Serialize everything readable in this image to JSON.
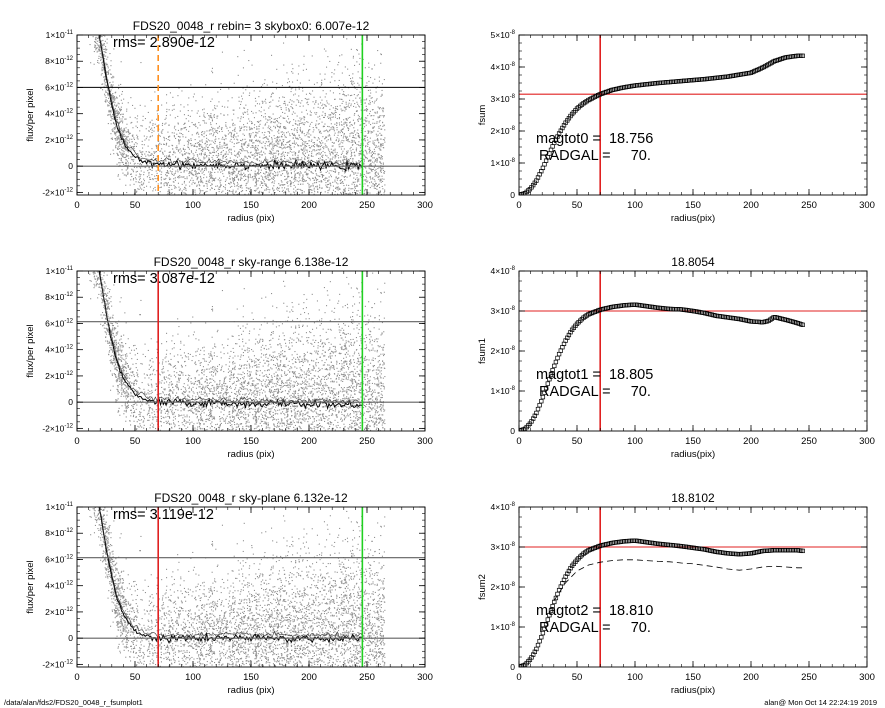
{
  "footer": {
    "path": "/data/alan/fds2/FDS20_0048_r_fsumplot1",
    "stamp": "alan@  Mon Oct 14 22:24:19 2019"
  },
  "colors": {
    "axis": "#000000",
    "scatter": "#909090",
    "profile": "#000000",
    "red": "#e02020",
    "green": "#20d020",
    "orange": "#ff9020",
    "skyline": "#606060"
  },
  "chart_data": [
    {
      "id": "p1",
      "type": "scatter",
      "title": "FDS20_0048_r rebin= 3    skybox0:  6.007e-12",
      "annotation": "rms= 2.890e-12",
      "xlabel": "radius (pix)",
      "ylabel": "flux/per pixel",
      "xlim": [
        0,
        300
      ],
      "ylim": [
        -2.2e-12,
        1e-11
      ],
      "xticks": [
        0,
        50,
        100,
        150,
        200,
        250,
        300
      ],
      "xticklabels": [
        "0",
        "50",
        "100",
        "150",
        "200",
        "250",
        "300"
      ],
      "yticks": [
        -2e-12,
        0,
        2e-12,
        4e-12,
        6e-12,
        8e-12,
        1e-11
      ],
      "yticklabels": [
        [
          "-2×10",
          "-12"
        ],
        [
          "0",
          ""
        ],
        [
          "2×10",
          "-12"
        ],
        [
          "4×10",
          "-12"
        ],
        [
          "6×10",
          "-12"
        ],
        [
          "8×10",
          "-12"
        ],
        [
          "1×10",
          "-11"
        ]
      ],
      "hlines": [
        {
          "y": 6.007e-12,
          "color": "#000000"
        },
        {
          "y": 0,
          "color": "#606060"
        }
      ],
      "vlines": [
        {
          "x": 70,
          "color": "#ff9020",
          "dash": true
        },
        {
          "x": 246,
          "color": "#20d020"
        }
      ],
      "profile": {
        "x": [
          18,
          22,
          26,
          30,
          34,
          38,
          42,
          46,
          50,
          55,
          60,
          70,
          80,
          100,
          125,
          150,
          175,
          200,
          225,
          245
        ],
        "y": [
          1.05e-11,
          8.5e-12,
          6.4e-12,
          4.6e-12,
          3.2e-12,
          2.2e-12,
          1.5e-12,
          1e-12,
          7e-13,
          4.5e-13,
          3e-13,
          2e-13,
          1.5e-13,
          1e-13,
          8e-14,
          6e-14,
          5e-14,
          3e-14,
          0,
          -5e-14
        ]
      },
      "scatter_profile": "spread ±3e-12 about the profile, denser near center"
    },
    {
      "id": "p2",
      "type": "scatter",
      "title": "",
      "annotation": [
        "magtot0 =  18.756",
        "RADGAL =     70."
      ],
      "xlabel": "radius(pix)",
      "ylabel": "fsum",
      "xlim": [
        0,
        300
      ],
      "ylim": [
        0,
        5e-08
      ],
      "xticks": [
        0,
        50,
        100,
        150,
        200,
        250,
        300
      ],
      "xticklabels": [
        "0",
        "50",
        "100",
        "150",
        "200",
        "250",
        "300"
      ],
      "yticks": [
        0,
        1e-08,
        2e-08,
        3e-08,
        4e-08,
        5e-08
      ],
      "yticklabels": [
        [
          "0",
          ""
        ],
        [
          "1×10",
          "-8"
        ],
        [
          "2×10",
          "-8"
        ],
        [
          "3×10",
          "-8"
        ],
        [
          "4×10",
          "-8"
        ],
        [
          "5×10",
          "-8"
        ]
      ],
      "hlines": [
        {
          "y": 3.15e-08,
          "color": "#e02020"
        }
      ],
      "vlines": [
        {
          "x": 70,
          "color": "#e02020"
        }
      ],
      "curve": {
        "x": [
          0,
          5,
          10,
          15,
          20,
          25,
          30,
          35,
          40,
          45,
          50,
          55,
          60,
          70,
          80,
          90,
          100,
          120,
          140,
          160,
          180,
          200,
          210,
          220,
          230,
          240,
          245
        ],
        "y": [
          0,
          5e-10,
          2e-09,
          4.5e-09,
          8e-09,
          1.2e-08,
          1.6e-08,
          1.95e-08,
          2.25e-08,
          2.5e-08,
          2.7e-08,
          2.85e-08,
          2.97e-08,
          3.15e-08,
          3.28e-08,
          3.36e-08,
          3.42e-08,
          3.5e-08,
          3.56e-08,
          3.62e-08,
          3.7e-08,
          3.82e-08,
          3.98e-08,
          4.18e-08,
          4.3e-08,
          4.35e-08,
          4.35e-08
        ]
      }
    },
    {
      "id": "p3",
      "type": "scatter",
      "title": "FDS20_0048_r sky-range  6.138e-12",
      "annotation": "rms= 3.087e-12",
      "xlabel": "radius (pix)",
      "ylabel": "flux/per pixel",
      "xlim": [
        0,
        300
      ],
      "ylim": [
        -2.2e-12,
        1e-11
      ],
      "xticks": [
        0,
        50,
        100,
        150,
        200,
        250,
        300
      ],
      "xticklabels": [
        "0",
        "50",
        "100",
        "150",
        "200",
        "250",
        "300"
      ],
      "yticks": [
        -2e-12,
        0,
        2e-12,
        4e-12,
        6e-12,
        8e-12,
        1e-11
      ],
      "yticklabels": [
        [
          "-2×10",
          "-12"
        ],
        [
          "0",
          ""
        ],
        [
          "2×10",
          "-12"
        ],
        [
          "4×10",
          "-12"
        ],
        [
          "6×10",
          "-12"
        ],
        [
          "8×10",
          "-12"
        ],
        [
          "1×10",
          "-11"
        ]
      ],
      "hlines": [
        {
          "y": 6.138e-12,
          "color": "#606060"
        },
        {
          "y": 0,
          "color": "#606060"
        }
      ],
      "vlines": [
        {
          "x": 70,
          "color": "#e02020"
        },
        {
          "x": 246,
          "color": "#20d020"
        }
      ],
      "profile": {
        "x": [
          18,
          22,
          26,
          30,
          34,
          38,
          42,
          46,
          50,
          55,
          60,
          70,
          80,
          100,
          125,
          150,
          175,
          200,
          225,
          245
        ],
        "y": [
          1.05e-11,
          8.5e-12,
          6.4e-12,
          4.6e-12,
          3.2e-12,
          2.2e-12,
          1.5e-12,
          1e-12,
          6e-13,
          3e-13,
          1.5e-13,
          0,
          -5e-14,
          -5e-14,
          -1e-13,
          -1e-13,
          -1.2e-13,
          -1.5e-13,
          -2e-13,
          -2.5e-13
        ]
      },
      "scatter_profile": "spread ±3e-12 about the profile, denser near center"
    },
    {
      "id": "p4",
      "type": "scatter",
      "title": "18.8054",
      "annotation": [
        "magtot1 =  18.805",
        "RADGAL =     70."
      ],
      "xlabel": "radius(pix)",
      "ylabel": "fsum1",
      "xlim": [
        0,
        300
      ],
      "ylim": [
        0,
        4e-08
      ],
      "xticks": [
        0,
        50,
        100,
        150,
        200,
        250,
        300
      ],
      "xticklabels": [
        "0",
        "50",
        "100",
        "150",
        "200",
        "250",
        "300"
      ],
      "yticks": [
        0,
        1e-08,
        2e-08,
        3e-08,
        4e-08
      ],
      "yticklabels": [
        [
          "0",
          ""
        ],
        [
          "1×10",
          "-8"
        ],
        [
          "2×10",
          "-8"
        ],
        [
          "3×10",
          "-8"
        ],
        [
          "4×10",
          "-8"
        ]
      ],
      "hlines": [
        {
          "y": 3e-08,
          "color": "#e02020"
        }
      ],
      "vlines": [
        {
          "x": 70,
          "color": "#e02020"
        }
      ],
      "curve": {
        "x": [
          0,
          5,
          10,
          15,
          20,
          25,
          30,
          35,
          40,
          45,
          50,
          55,
          60,
          70,
          80,
          90,
          100,
          110,
          120,
          130,
          140,
          150,
          160,
          170,
          180,
          190,
          200,
          210,
          215,
          220,
          230,
          240,
          245
        ],
        "y": [
          0,
          5e-10,
          2e-09,
          4.5e-09,
          8e-09,
          1.2e-08,
          1.6e-08,
          1.95e-08,
          2.25e-08,
          2.5e-08,
          2.68e-08,
          2.82e-08,
          2.92e-08,
          3.03e-08,
          3.1e-08,
          3.14e-08,
          3.16e-08,
          3.12e-08,
          3.08e-08,
          3.05e-08,
          3.04e-08,
          3e-08,
          2.95e-08,
          2.88e-08,
          2.84e-08,
          2.8e-08,
          2.74e-08,
          2.72e-08,
          2.75e-08,
          2.85e-08,
          2.78e-08,
          2.7e-08,
          2.65e-08
        ]
      }
    },
    {
      "id": "p5",
      "type": "scatter",
      "title": "FDS20_0048_r sky-plane  6.132e-12",
      "annotation": "rms= 3.119e-12",
      "xlabel": "radius (pix)",
      "ylabel": "flux/per pixel",
      "xlim": [
        0,
        300
      ],
      "ylim": [
        -2.2e-12,
        1e-11
      ],
      "xticks": [
        0,
        50,
        100,
        150,
        200,
        250,
        300
      ],
      "xticklabels": [
        "0",
        "50",
        "100",
        "150",
        "200",
        "250",
        "300"
      ],
      "yticks": [
        -2e-12,
        0,
        2e-12,
        4e-12,
        6e-12,
        8e-12,
        1e-11
      ],
      "yticklabels": [
        [
          "-2×10",
          "-12"
        ],
        [
          "0",
          ""
        ],
        [
          "2×10",
          "-12"
        ],
        [
          "4×10",
          "-12"
        ],
        [
          "6×10",
          "-12"
        ],
        [
          "8×10",
          "-12"
        ],
        [
          "1×10",
          "-11"
        ]
      ],
      "hlines": [
        {
          "y": 6.132e-12,
          "color": "#606060"
        },
        {
          "y": 0,
          "color": "#606060"
        }
      ],
      "vlines": [
        {
          "x": 70,
          "color": "#e02020"
        },
        {
          "x": 246,
          "color": "#20d020"
        }
      ],
      "profile": {
        "x": [
          18,
          22,
          26,
          30,
          34,
          38,
          42,
          46,
          50,
          55,
          60,
          70,
          80,
          100,
          125,
          150,
          175,
          200,
          225,
          245
        ],
        "y": [
          1.05e-11,
          8.5e-12,
          6.4e-12,
          4.6e-12,
          3.2e-12,
          2.2e-12,
          1.5e-12,
          1e-12,
          6e-13,
          3e-13,
          1.5e-13,
          0,
          -5e-14,
          0,
          0,
          0,
          -2e-14,
          -3e-14,
          -5e-14,
          -8e-14
        ]
      },
      "scatter_profile": "spread ±3e-12 about the profile, denser near center"
    },
    {
      "id": "p6",
      "type": "scatter",
      "title": "18.8102",
      "annotation": [
        "magtot2 =  18.810",
        "RADGAL =     70."
      ],
      "xlabel": "radius(pix)",
      "ylabel": "fsum2",
      "xlim": [
        0,
        300
      ],
      "ylim": [
        0,
        4e-08
      ],
      "xticks": [
        0,
        50,
        100,
        150,
        200,
        250,
        300
      ],
      "xticklabels": [
        "0",
        "50",
        "100",
        "150",
        "200",
        "250",
        "300"
      ],
      "yticks": [
        0,
        1e-08,
        2e-08,
        3e-08,
        4e-08
      ],
      "yticklabels": [
        [
          "0",
          ""
        ],
        [
          "1×10",
          "-8"
        ],
        [
          "2×10",
          "-8"
        ],
        [
          "3×10",
          "-8"
        ],
        [
          "4×10",
          "-8"
        ]
      ],
      "hlines": [
        {
          "y": 3e-08,
          "color": "#e02020"
        }
      ],
      "vlines": [
        {
          "x": 70,
          "color": "#e02020"
        }
      ],
      "curve": {
        "x": [
          0,
          5,
          10,
          15,
          20,
          25,
          30,
          35,
          40,
          45,
          50,
          55,
          60,
          70,
          80,
          90,
          100,
          110,
          120,
          130,
          140,
          150,
          160,
          170,
          180,
          190,
          200,
          210,
          220,
          230,
          240,
          245
        ],
        "y": [
          0,
          5e-10,
          2e-09,
          4.5e-09,
          8e-09,
          1.2e-08,
          1.6e-08,
          1.95e-08,
          2.25e-08,
          2.5e-08,
          2.68e-08,
          2.82e-08,
          2.92e-08,
          3.03e-08,
          3.1e-08,
          3.14e-08,
          3.16e-08,
          3.12e-08,
          3.08e-08,
          3.05e-08,
          3.02e-08,
          2.98e-08,
          2.94e-08,
          2.88e-08,
          2.84e-08,
          2.82e-08,
          2.84e-08,
          2.9e-08,
          2.92e-08,
          2.92e-08,
          2.92e-08,
          2.9e-08
        ]
      },
      "dashed_curve": {
        "x": [
          30,
          40,
          50,
          60,
          70,
          80,
          90,
          100,
          110,
          120,
          130,
          140,
          150,
          160,
          170,
          180,
          190,
          200,
          210,
          220,
          230,
          240,
          245
        ],
        "y": [
          1.65e-08,
          2.1e-08,
          2.4e-08,
          2.55e-08,
          2.62e-08,
          2.66e-08,
          2.68e-08,
          2.68e-08,
          2.66e-08,
          2.64e-08,
          2.63e-08,
          2.6e-08,
          2.58e-08,
          2.54e-08,
          2.5e-08,
          2.45e-08,
          2.42e-08,
          2.45e-08,
          2.5e-08,
          2.52e-08,
          2.5e-08,
          2.48e-08,
          2.48e-08
        ]
      }
    }
  ]
}
